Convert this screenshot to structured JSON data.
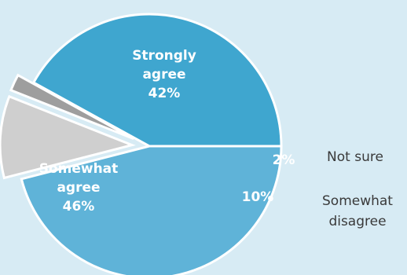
{
  "chart_data": {
    "type": "pie",
    "title": "",
    "slices": [
      {
        "key": "strongly",
        "label_lines": [
          "Strongly",
          "agree",
          "42%"
        ],
        "value": 42,
        "color": "#3fa6cf"
      },
      {
        "key": "not_sure",
        "label_lines": [
          "2%"
        ],
        "outside_label_lines": [
          "Not sure"
        ],
        "value": 2,
        "color": "#9e9e9e"
      },
      {
        "key": "somewhat_disagree",
        "label_lines": [
          "10%"
        ],
        "outside_label_lines": [
          "Somewhat",
          "disagree"
        ],
        "value": 10,
        "color": "#cfcfcf"
      },
      {
        "key": "somewhat_agree",
        "label_lines": [
          "Somewhat",
          "agree",
          "46%"
        ],
        "value": 46,
        "color": "#5fb3d8"
      }
    ]
  }
}
